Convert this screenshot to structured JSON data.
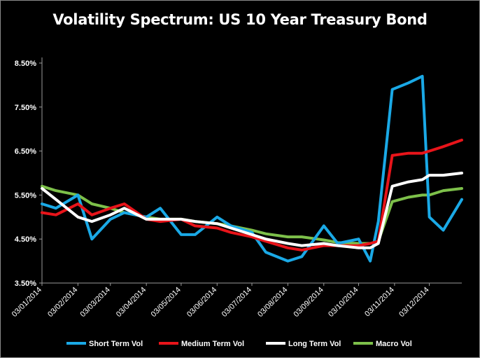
{
  "chart_data": {
    "type": "line",
    "title": "Volatility Spectrum: US 10 Year Treasury Bond",
    "xlabel": "",
    "ylabel": "",
    "ylim": [
      3.5,
      8.5
    ],
    "y_ticks": [
      "3.50%",
      "4.50%",
      "5.50%",
      "6.50%",
      "7.50%",
      "8.50%"
    ],
    "x_ticks": [
      "03/01/2014",
      "03/02/2014",
      "03/03/2014",
      "03/04/2014",
      "03/05/2014",
      "03/06/2014",
      "03/07/2014",
      "03/08/2014",
      "03/09/2014",
      "03/10/2014",
      "03/11/2014",
      "03/12/2014"
    ],
    "grid": false,
    "legend_position": "bottom",
    "x": [
      "03/01/2014",
      "15/01/2014",
      "03/02/2014",
      "15/02/2014",
      "03/03/2014",
      "15/03/2014",
      "03/04/2014",
      "15/04/2014",
      "03/05/2014",
      "15/05/2014",
      "03/06/2014",
      "15/06/2014",
      "03/07/2014",
      "15/07/2014",
      "03/08/2014",
      "15/08/2014",
      "03/09/2014",
      "15/09/2014",
      "03/10/2014",
      "13/10/2014",
      "20/10/2014",
      "01/11/2014",
      "15/11/2014",
      "27/11/2014",
      "03/12/2014",
      "15/12/2014",
      "31/12/2014"
    ],
    "series": [
      {
        "name": "Short Term Vol",
        "color": "#1aa9e6",
        "values": [
          5.3,
          5.2,
          5.5,
          4.5,
          4.95,
          5.1,
          5.0,
          5.2,
          4.6,
          4.6,
          5.0,
          4.8,
          4.65,
          4.2,
          4.0,
          4.1,
          4.8,
          4.4,
          4.5,
          4.0,
          4.9,
          7.9,
          8.05,
          8.2,
          5.0,
          4.7,
          5.4
        ]
      },
      {
        "name": "Medium Term Vol",
        "color": "#e8141a",
        "values": [
          5.1,
          5.05,
          5.3,
          5.05,
          5.2,
          5.3,
          4.95,
          4.9,
          4.95,
          4.8,
          4.75,
          4.65,
          4.55,
          4.45,
          4.3,
          4.25,
          4.35,
          4.35,
          4.35,
          4.4,
          4.45,
          6.4,
          6.45,
          6.45,
          6.5,
          6.6,
          6.75
        ]
      },
      {
        "name": "Long Term Vol",
        "color": "#ffffff",
        "values": [
          5.65,
          5.4,
          5.0,
          4.9,
          5.05,
          5.2,
          4.95,
          4.95,
          4.95,
          4.9,
          4.85,
          4.75,
          4.6,
          4.5,
          4.4,
          4.35,
          4.4,
          4.35,
          4.3,
          4.3,
          4.4,
          5.7,
          5.8,
          5.85,
          5.95,
          5.95,
          6.0
        ]
      },
      {
        "name": "Macro Vol",
        "color": "#7dc04a",
        "values": [
          5.7,
          5.6,
          5.5,
          5.3,
          5.2,
          5.1,
          5.0,
          4.95,
          4.95,
          4.9,
          4.85,
          4.8,
          4.7,
          4.62,
          4.55,
          4.55,
          4.48,
          4.42,
          4.4,
          4.4,
          4.45,
          5.35,
          5.45,
          5.5,
          5.5,
          5.6,
          5.65
        ]
      }
    ]
  }
}
